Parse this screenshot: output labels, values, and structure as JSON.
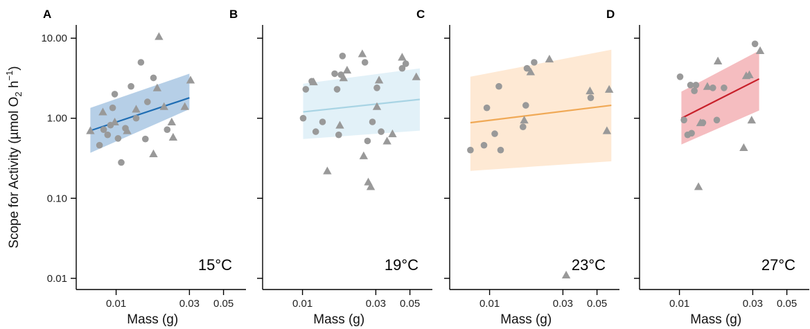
{
  "figure": {
    "y_axis_label": "Scope for Activity (µmol O",
    "y_axis_label_sub": "2",
    "y_axis_label_mid": " h",
    "y_axis_label_sup": "−1",
    "y_axis_label_end": ")",
    "x_axis_label": "Mass (g)",
    "point_color": "#999999"
  },
  "chart_data": [
    {
      "type": "scatter",
      "panel": "A",
      "temperature_label": "15°C",
      "xlabel": "Mass (g)",
      "ylabel": "Scope for Activity (µmol O2 h−1)",
      "x_scale": "log",
      "y_scale": "log",
      "xlim": [
        0.0055,
        0.07
      ],
      "ylim": [
        0.0085,
        13
      ],
      "x_ticks": [
        0.01,
        0.03,
        0.05
      ],
      "x_tick_labels": [
        "0.01",
        "0.03",
        "0.05"
      ],
      "y_ticks": [
        0.01,
        0.1,
        1,
        10
      ],
      "y_tick_labels": [
        "0.01",
        "0.10",
        "1.00",
        "10.00"
      ],
      "line_color": "#1f6db3",
      "band_color": "#9dbfdf",
      "fit_line": {
        "x": [
          0.0068,
          0.03
        ],
        "y": [
          0.7,
          1.8
        ]
      },
      "confidence_band": {
        "x": [
          0.0068,
          0.03
        ],
        "lower": [
          0.37,
          1.3
        ],
        "upper": [
          1.35,
          3.6
        ]
      },
      "points_circle": [
        {
          "x": 0.0078,
          "y": 0.46
        },
        {
          "x": 0.0083,
          "y": 0.72
        },
        {
          "x": 0.0088,
          "y": 0.62
        },
        {
          "x": 0.0092,
          "y": 0.82
        },
        {
          "x": 0.0095,
          "y": 1.35
        },
        {
          "x": 0.0098,
          "y": 2.0
        },
        {
          "x": 0.0103,
          "y": 0.56
        },
        {
          "x": 0.0108,
          "y": 0.28
        },
        {
          "x": 0.0115,
          "y": 0.75
        },
        {
          "x": 0.0125,
          "y": 2.5
        },
        {
          "x": 0.0135,
          "y": 1.0
        },
        {
          "x": 0.0145,
          "y": 5.0
        },
        {
          "x": 0.0155,
          "y": 0.55
        },
        {
          "x": 0.016,
          "y": 1.6
        },
        {
          "x": 0.0175,
          "y": 3.2
        },
        {
          "x": 0.0215,
          "y": 0.72
        }
      ],
      "points_triangle": [
        {
          "x": 0.0068,
          "y": 0.7
        },
        {
          "x": 0.0082,
          "y": 1.2
        },
        {
          "x": 0.0098,
          "y": 0.9
        },
        {
          "x": 0.0118,
          "y": 0.7
        },
        {
          "x": 0.0135,
          "y": 1.3
        },
        {
          "x": 0.0175,
          "y": 0.36
        },
        {
          "x": 0.0185,
          "y": 2.4
        },
        {
          "x": 0.019,
          "y": 10.5
        },
        {
          "x": 0.0205,
          "y": 1.4
        },
        {
          "x": 0.023,
          "y": 0.9
        },
        {
          "x": 0.0235,
          "y": 0.58
        },
        {
          "x": 0.028,
          "y": 1.4
        },
        {
          "x": 0.0305,
          "y": 3.0
        }
      ]
    },
    {
      "type": "scatter",
      "panel": "B",
      "temperature_label": "19°C",
      "xlabel": "Mass (g)",
      "ylabel": "",
      "x_scale": "log",
      "y_scale": "log",
      "xlim": [
        0.0055,
        0.07
      ],
      "ylim": [
        0.0085,
        13
      ],
      "x_ticks": [
        0.01,
        0.03,
        0.05
      ],
      "x_tick_labels": [
        "0.01",
        "0.03",
        "0.05"
      ],
      "y_ticks": [
        0.01,
        0.1,
        1,
        10
      ],
      "y_tick_labels": [
        "",
        "",
        "",
        ""
      ],
      "line_color": "#a8d4e4",
      "band_color": "#d8ecf6",
      "fit_line": {
        "x": [
          0.0101,
          0.058
        ],
        "y": [
          1.2,
          1.72
        ]
      },
      "confidence_band": {
        "x": [
          0.0101,
          0.058
        ],
        "lower": [
          0.55,
          0.7
        ],
        "upper": [
          2.7,
          4.2
        ]
      },
      "points_circle": [
        {
          "x": 0.0101,
          "y": 1.0
        },
        {
          "x": 0.0105,
          "y": 2.3
        },
        {
          "x": 0.0115,
          "y": 2.9
        },
        {
          "x": 0.0122,
          "y": 0.68
        },
        {
          "x": 0.0135,
          "y": 0.9
        },
        {
          "x": 0.0162,
          "y": 3.6
        },
        {
          "x": 0.0168,
          "y": 2.3
        },
        {
          "x": 0.0172,
          "y": 0.62
        },
        {
          "x": 0.0178,
          "y": 3.5
        },
        {
          "x": 0.0182,
          "y": 6.0
        },
        {
          "x": 0.0255,
          "y": 5.0
        },
        {
          "x": 0.0265,
          "y": 0.52
        },
        {
          "x": 0.0285,
          "y": 0.9
        },
        {
          "x": 0.0305,
          "y": 2.4
        },
        {
          "x": 0.0325,
          "y": 0.68
        },
        {
          "x": 0.0445,
          "y": 4.2
        },
        {
          "x": 0.047,
          "y": 4.8
        }
      ],
      "points_triangle": [
        {
          "x": 0.0118,
          "y": 2.85
        },
        {
          "x": 0.0145,
          "y": 0.22
        },
        {
          "x": 0.0175,
          "y": 0.82
        },
        {
          "x": 0.0185,
          "y": 3.2
        },
        {
          "x": 0.0195,
          "y": 4.0
        },
        {
          "x": 0.0245,
          "y": 6.4
        },
        {
          "x": 0.025,
          "y": 0.34
        },
        {
          "x": 0.0268,
          "y": 0.16
        },
        {
          "x": 0.0278,
          "y": 0.14
        },
        {
          "x": 0.0305,
          "y": 1.4
        },
        {
          "x": 0.0315,
          "y": 3.0
        },
        {
          "x": 0.0355,
          "y": 0.52
        },
        {
          "x": 0.0385,
          "y": 0.64
        },
        {
          "x": 0.0445,
          "y": 5.8
        },
        {
          "x": 0.055,
          "y": 3.3
        }
      ]
    },
    {
      "type": "scatter",
      "panel": "C",
      "temperature_label": "23°C",
      "xlabel": "Mass (g)",
      "ylabel": "",
      "x_scale": "log",
      "y_scale": "log",
      "xlim": [
        0.0055,
        0.07
      ],
      "ylim": [
        0.0085,
        13
      ],
      "x_ticks": [
        0.01,
        0.03,
        0.05
      ],
      "x_tick_labels": [
        "0.01",
        "0.03",
        "0.05"
      ],
      "y_ticks": [
        0.01,
        0.1,
        1,
        10
      ],
      "y_tick_labels": [
        "",
        "",
        "",
        ""
      ],
      "line_color": "#f0a956",
      "band_color": "#fde1c5",
      "fit_line": {
        "x": [
          0.0075,
          0.062
        ],
        "y": [
          0.88,
          1.45
        ]
      },
      "confidence_band": {
        "x": [
          0.0075,
          0.062
        ],
        "lower": [
          0.22,
          0.29
        ],
        "upper": [
          3.3,
          7.2
        ]
      },
      "points_circle": [
        {
          "x": 0.0075,
          "y": 0.4
        },
        {
          "x": 0.0092,
          "y": 0.46
        },
        {
          "x": 0.0096,
          "y": 1.35
        },
        {
          "x": 0.0108,
          "y": 0.64
        },
        {
          "x": 0.0115,
          "y": 2.5
        },
        {
          "x": 0.0118,
          "y": 0.4
        },
        {
          "x": 0.0165,
          "y": 0.78
        },
        {
          "x": 0.0172,
          "y": 1.45
        },
        {
          "x": 0.0175,
          "y": 4.2
        },
        {
          "x": 0.0195,
          "y": 5.0
        },
        {
          "x": 0.0455,
          "y": 1.8
        }
      ],
      "points_triangle": [
        {
          "x": 0.0168,
          "y": 0.95
        },
        {
          "x": 0.0185,
          "y": 3.8
        },
        {
          "x": 0.0245,
          "y": 5.5
        },
        {
          "x": 0.0315,
          "y": 0.011
        },
        {
          "x": 0.045,
          "y": 2.2
        },
        {
          "x": 0.058,
          "y": 0.7
        },
        {
          "x": 0.06,
          "y": 2.3
        }
      ]
    },
    {
      "type": "scatter",
      "panel": "D",
      "temperature_label": "27°C",
      "xlabel": "Mass (g)",
      "ylabel": "",
      "x_scale": "log",
      "y_scale": "log",
      "xlim": [
        0.0055,
        0.07
      ],
      "ylim": [
        0.0085,
        13
      ],
      "x_ticks": [
        0.01,
        0.03,
        0.05
      ],
      "x_tick_labels": [
        "0.01",
        "0.03",
        "0.05"
      ],
      "y_ticks": [
        0.01,
        0.1,
        1,
        10
      ],
      "y_tick_labels": [
        "",
        "",
        "",
        ""
      ],
      "line_color": "#c8202a",
      "band_color": "#f1a7ab",
      "fit_line": {
        "x": [
          0.0103,
          0.033
        ],
        "y": [
          1.0,
          3.1
        ]
      },
      "confidence_band": {
        "x": [
          0.0103,
          0.033
        ],
        "lower": [
          0.47,
          1.25
        ],
        "upper": [
          2.15,
          7.0
        ]
      },
      "points_circle": [
        {
          "x": 0.0101,
          "y": 3.3
        },
        {
          "x": 0.0107,
          "y": 0.95
        },
        {
          "x": 0.0113,
          "y": 0.62
        },
        {
          "x": 0.0118,
          "y": 2.6
        },
        {
          "x": 0.012,
          "y": 0.65
        },
        {
          "x": 0.0125,
          "y": 2.2
        },
        {
          "x": 0.0128,
          "y": 2.6
        },
        {
          "x": 0.0142,
          "y": 0.88
        },
        {
          "x": 0.0165,
          "y": 2.4
        },
        {
          "x": 0.0175,
          "y": 0.95
        },
        {
          "x": 0.0195,
          "y": 2.4
        },
        {
          "x": 0.031,
          "y": 8.5
        }
      ],
      "points_triangle": [
        {
          "x": 0.0133,
          "y": 0.14
        },
        {
          "x": 0.0137,
          "y": 0.88
        },
        {
          "x": 0.0152,
          "y": 2.5
        },
        {
          "x": 0.0178,
          "y": 5.2
        },
        {
          "x": 0.0262,
          "y": 0.43
        },
        {
          "x": 0.0272,
          "y": 3.4
        },
        {
          "x": 0.0285,
          "y": 3.5
        },
        {
          "x": 0.0295,
          "y": 0.95
        },
        {
          "x": 0.0335,
          "y": 7.0
        }
      ]
    }
  ]
}
